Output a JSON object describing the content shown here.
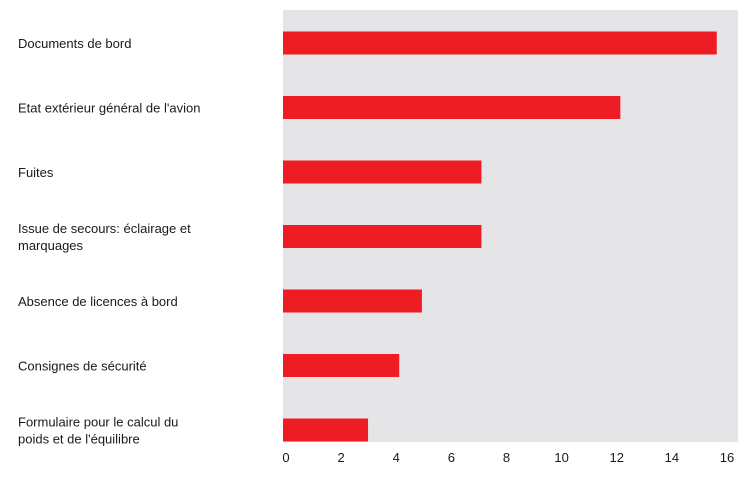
{
  "chart_data": {
    "type": "bar",
    "orientation": "horizontal",
    "categories": [
      [
        "Documents de bord"
      ],
      [
        "Etat extérieur général de l'avion"
      ],
      [
        "Fuites"
      ],
      [
        "Issue de secours: éclairage et",
        "marquages"
      ],
      [
        "Absence de licences à bord"
      ],
      [
        "Consignes de sécurité"
      ],
      [
        "Formulaire pour le calcul du",
        "poids et de l'équilibre"
      ]
    ],
    "values": [
      15.3,
      11.9,
      7.0,
      7.0,
      4.9,
      4.1,
      3.0
    ],
    "xlim": [
      0,
      16
    ],
    "xticks": [
      "0",
      "2",
      "4",
      "6",
      "8",
      "10",
      "12",
      "14",
      "16"
    ],
    "title": "",
    "xlabel": "",
    "ylabel": "",
    "grid": false,
    "legend": "none",
    "colors": {
      "bar": "#ee1c25",
      "plot_background": "#e5e5e7"
    }
  }
}
